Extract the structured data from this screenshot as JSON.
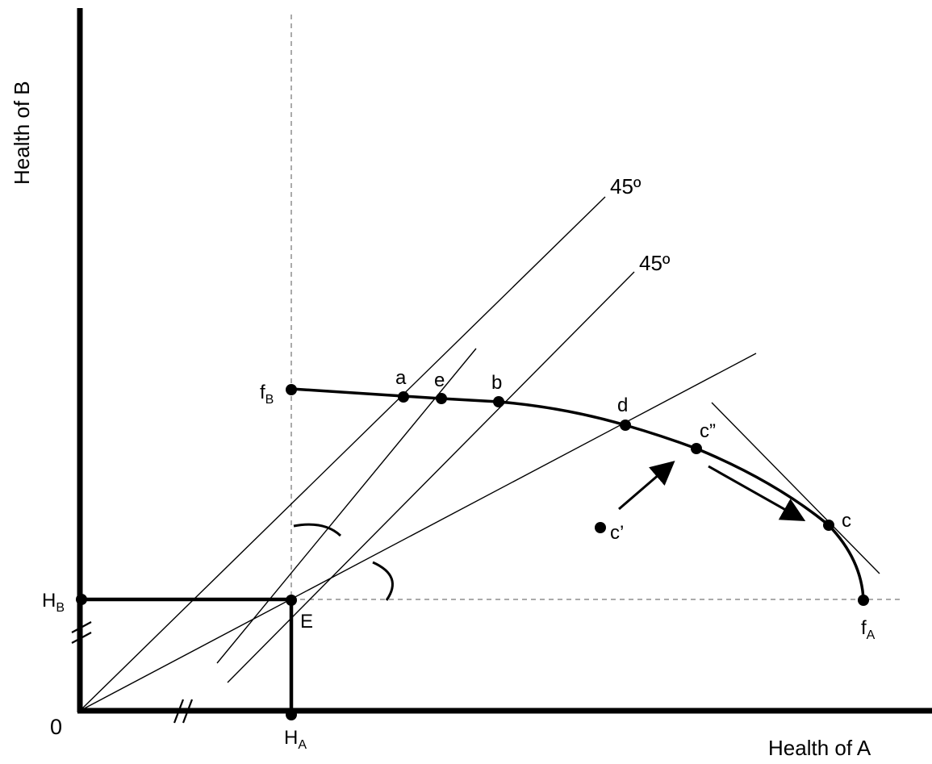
{
  "axes": {
    "x_title": "Health of A",
    "y_title": "Health of B",
    "origin": "0"
  },
  "points": {
    "HA": {
      "main": "H",
      "sub": "A"
    },
    "HB": {
      "main": "H",
      "sub": "B"
    },
    "E": "E",
    "fB": {
      "main": "f",
      "sub": "B"
    },
    "fA": {
      "main": "f",
      "sub": "A"
    },
    "a": "a",
    "e": "e",
    "b": "b",
    "d": "d",
    "c_double_prime": "c”",
    "c_prime": "c’",
    "c": "c"
  },
  "reference_lines": {
    "upper": "45º",
    "lower": "45º"
  },
  "colors": {
    "ink": "#000000",
    "background": "#ffffff"
  }
}
